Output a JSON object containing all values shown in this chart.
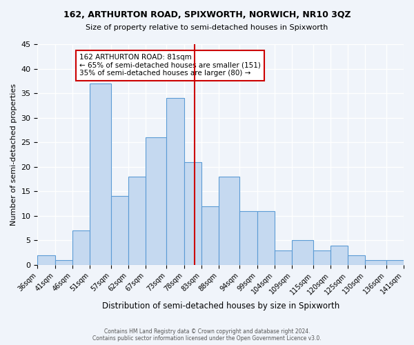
{
  "title": "162, ARTHURTON ROAD, SPIXWORTH, NORWICH, NR10 3QZ",
  "subtitle": "Size of property relative to semi-detached houses in Spixworth",
  "xlabel": "Distribution of semi-detached houses by size in Spixworth",
  "ylabel": "Number of semi-detached properties",
  "bin_labels": [
    "36sqm",
    "41sqm",
    "46sqm",
    "51sqm",
    "57sqm",
    "62sqm",
    "67sqm",
    "73sqm",
    "78sqm",
    "83sqm",
    "88sqm",
    "94sqm",
    "99sqm",
    "104sqm",
    "109sqm",
    "115sqm",
    "120sqm",
    "125sqm",
    "130sqm",
    "136sqm",
    "141sqm"
  ],
  "bin_edges": [
    36,
    41,
    46,
    51,
    57,
    62,
    67,
    73,
    78,
    83,
    88,
    94,
    99,
    104,
    109,
    115,
    120,
    125,
    130,
    136,
    141
  ],
  "values": [
    2,
    1,
    7,
    37,
    14,
    18,
    26,
    34,
    21,
    12,
    18,
    11,
    11,
    3,
    5,
    3,
    4,
    2,
    1,
    1
  ],
  "bar_color": "#c5d9f0",
  "bar_edge_color": "#5b9bd5",
  "vline_x": 81,
  "vline_color": "#cc0000",
  "annotation_text": "162 ARTHURTON ROAD: 81sqm\n← 65% of semi-detached houses are smaller (151)\n35% of semi-detached houses are larger (80) →",
  "annotation_box_color": "#ffffff",
  "annotation_box_edge_color": "#cc0000",
  "ylim": [
    0,
    45
  ],
  "yticks": [
    0,
    5,
    10,
    15,
    20,
    25,
    30,
    35,
    40,
    45
  ],
  "footer_text": "Contains HM Land Registry data © Crown copyright and database right 2024.\nContains public sector information licensed under the Open Government Licence v3.0.",
  "background_color": "#f0f4fa",
  "grid_color": "#ffffff"
}
